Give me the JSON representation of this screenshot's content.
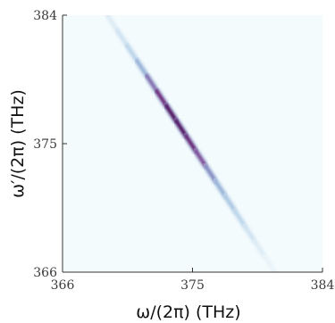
{
  "chart_data": {
    "type": "heatmap",
    "xlabel": "ω/(2π) (THz)",
    "ylabel": "ω′/(2π) (THz)",
    "xlim": [
      366,
      384
    ],
    "ylim": [
      366,
      384
    ],
    "x_ticks": [
      "366",
      "375",
      "384"
    ],
    "y_ticks": [
      "366",
      "375",
      "384"
    ],
    "grid": false,
    "colormap": [
      "#f4fbfd",
      "#bcd6ea",
      "#8ba4d0",
      "#7d3a8c",
      "#4a0f5a"
    ],
    "ridge": {
      "points": [
        {
          "omega": 369.1,
          "omega_prime": 384.0
        },
        {
          "omega": 375.0,
          "omega_prime": 375.0
        },
        {
          "omega": 380.7,
          "omega_prime": 366.0
        }
      ],
      "peak_center": {
        "omega": 374.4,
        "omega_prime": 376.0
      },
      "intensity_profile": [
        0.1,
        0.16,
        0.25,
        0.42,
        0.62,
        0.82,
        0.96,
        0.95,
        0.85,
        0.7,
        0.55,
        0.42,
        0.32,
        0.24,
        0.16,
        0.1,
        0.05
      ]
    }
  }
}
